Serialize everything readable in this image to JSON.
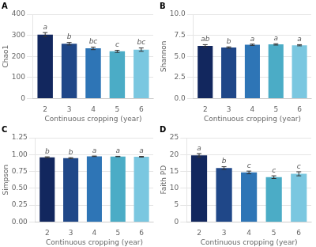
{
  "chart_data": [
    {
      "type": "bar",
      "title": "A",
      "xlabel": "Continuous cropping (year)",
      "ylabel": "Chao1",
      "categories": [
        "2",
        "3",
        "4",
        "5",
        "6"
      ],
      "values": [
        303,
        260,
        238,
        224,
        232
      ],
      "errors": [
        10,
        6,
        6,
        5,
        8
      ],
      "annotations": [
        "a",
        "b",
        "bc",
        "c",
        "bc"
      ],
      "colors": [
        "#12275e",
        "#1f4788",
        "#2e75b6",
        "#4bacc6",
        "#7ac7e0"
      ],
      "ylim": [
        0,
        400
      ],
      "yticks": [
        0,
        100,
        200,
        300,
        400
      ],
      "grid": true
    },
    {
      "type": "bar",
      "title": "B",
      "xlabel": "Continuous cropping (year)",
      "ylabel": "Shannon",
      "categories": [
        "2",
        "3",
        "4",
        "5",
        "6"
      ],
      "values": [
        6.25,
        6.05,
        6.38,
        6.42,
        6.32
      ],
      "errors": [
        0.14,
        0.08,
        0.08,
        0.08,
        0.07
      ],
      "annotations": [
        "ab",
        "b",
        "a",
        "a",
        "a"
      ],
      "colors": [
        "#12275e",
        "#1f4788",
        "#2e75b6",
        "#4bacc6",
        "#7ac7e0"
      ],
      "ylim": [
        0,
        10
      ],
      "yticks": [
        {
          "value": 0,
          "label": "0.0"
        },
        2.5,
        {
          "value": 5,
          "label": "5.0"
        },
        7.5,
        {
          "value": 10,
          "label": "10.0"
        }
      ],
      "grid": true
    },
    {
      "type": "bar",
      "title": "C",
      "xlabel": "Continuous cropping (year)",
      "ylabel": "Simpson",
      "categories": [
        "2",
        "3",
        "4",
        "5",
        "6"
      ],
      "values": [
        0.96,
        0.948,
        0.975,
        0.972,
        0.968
      ],
      "errors": [
        0.007,
        0.007,
        0.004,
        0.003,
        0.005
      ],
      "annotations": [
        "b",
        "b",
        "a",
        "a",
        "a"
      ],
      "colors": [
        "#12275e",
        "#1f4788",
        "#2e75b6",
        "#4bacc6",
        "#7ac7e0"
      ],
      "ylim": [
        0,
        1.25
      ],
      "yticks": [
        {
          "value": 0,
          "label": "0.00"
        },
        0.25,
        {
          "value": 0.5,
          "label": "0.50"
        },
        0.75,
        {
          "value": 1,
          "label": "1.00"
        },
        1.25
      ],
      "grid": true
    },
    {
      "type": "bar",
      "title": "D",
      "xlabel": "Continuous cropping (year)",
      "ylabel": "Faith PD",
      "categories": [
        "2",
        "3",
        "4",
        "5",
        "6"
      ],
      "values": [
        19.8,
        16.0,
        14.7,
        13.3,
        14.3
      ],
      "errors": [
        0.5,
        0.4,
        0.4,
        0.4,
        0.6
      ],
      "annotations": [
        "a",
        "b",
        "c",
        "c",
        "c"
      ],
      "colors": [
        "#12275e",
        "#1f4788",
        "#2e75b6",
        "#4bacc6",
        "#7ac7e0"
      ],
      "ylim": [
        0,
        25
      ],
      "yticks": [
        0,
        5,
        10,
        15,
        20,
        25
      ],
      "grid": true
    }
  ]
}
